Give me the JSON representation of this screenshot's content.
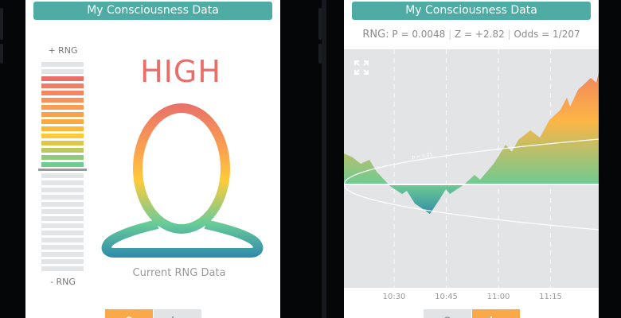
{
  "app_title": "My Consciousness Data",
  "left_screen": {
    "title": "My Consciousness Data",
    "plus_label": "+ RNG",
    "minus_label": "- RNG",
    "level_word": "HIGH",
    "caption": "Current RNG Data",
    "meter": {
      "positive_levels": 15,
      "negative_levels": 14,
      "current_level": 13,
      "colors": [
        "#ea6e6a",
        "#f27d67",
        "#f48763",
        "#f6935c",
        "#f99e50",
        "#f9a04a",
        "#fbaa40",
        "#fdb83a",
        "#fdca38",
        "#dfc74b",
        "#bdc95d",
        "#8fcb7b",
        "#6ecc91"
      ],
      "empty_color": "#e3e4e6"
    },
    "toggle": {
      "active": "person-view",
      "items": [
        {
          "name": "person-view",
          "icon": "person-icon"
        },
        {
          "name": "chart-view",
          "icon": "bar-chart-icon"
        }
      ]
    }
  },
  "right_screen": {
    "title": "My Consciousness Data",
    "stats_prefix": "RNG:",
    "stats": [
      "P = 0.0048",
      "Z = +2.82",
      "Odds = 1/207"
    ],
    "expand_icon": "expand-icon",
    "toggle": {
      "active": "chart-view",
      "items": [
        {
          "name": "person-view",
          "icon": "person-icon"
        },
        {
          "name": "chart-view",
          "icon": "bar-chart-icon"
        }
      ]
    }
  },
  "chart_data": {
    "type": "area",
    "title": "",
    "xlabel": "",
    "ylabel": "",
    "x_ticks": [
      "10:30",
      "10:45",
      "11:00",
      "11:15"
    ],
    "xlim": [
      "10:15:34",
      "11:28:51"
    ],
    "ylim": [
      -13,
      17
    ],
    "grid": "vertical dashed at x ticks",
    "baseline": 0,
    "envelope_label": "p = 0.05",
    "envelope_value_at_end": 5.7,
    "x": [
      "10:15:34",
      "10:18:05",
      "10:20:23",
      "10:22:54",
      "10:24:58",
      "10:28:51",
      "10:32:17",
      "10:33:40",
      "10:35:57",
      "10:40:18",
      "10:43:03",
      "10:44:53",
      "10:46:02",
      "10:50:09",
      "10:53:08",
      "10:54:44",
      "10:58:38",
      "11:02:04",
      "11:03:53",
      "11:05:44",
      "11:09:10",
      "11:11:55",
      "11:14:40",
      "11:17:52",
      "11:19:41",
      "11:20:37",
      "11:22:54",
      "11:26:34",
      "11:28:10",
      "11:28:51"
    ],
    "values": [
      3.9,
      3.4,
      2.6,
      3.1,
      1.6,
      -0.2,
      -1.2,
      -0.8,
      -2.4,
      -3.7,
      -1.9,
      -0.6,
      -1.2,
      0,
      1.2,
      0.6,
      2.6,
      5.0,
      4.1,
      5.6,
      6.8,
      5.9,
      8.1,
      9.4,
      10.9,
      9.8,
      11.9,
      13.4,
      12.8,
      14.1
    ],
    "colors": {
      "high": "#ec6e68",
      "mid": "#fdb546",
      "zero": "#6ecb92",
      "low": "#2e8aa9"
    }
  }
}
